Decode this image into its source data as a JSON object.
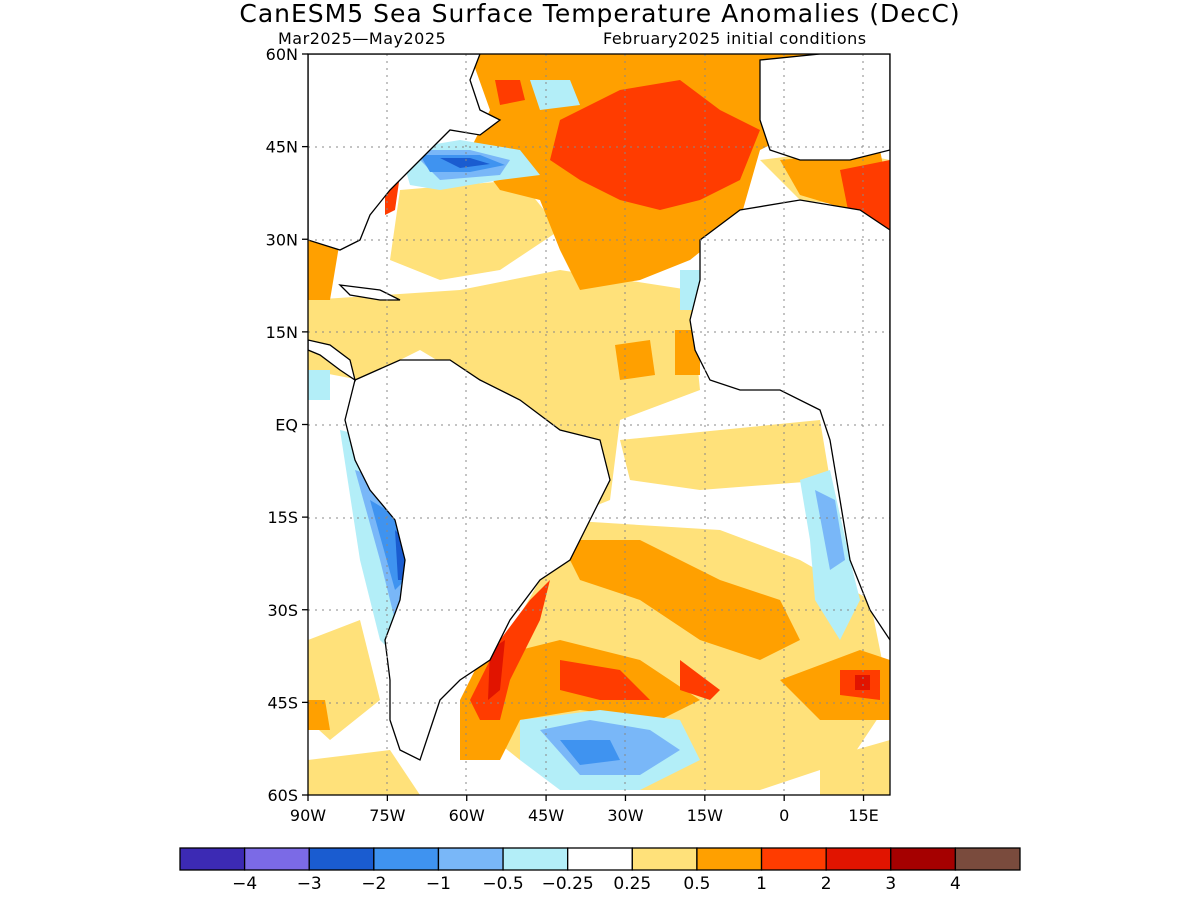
{
  "map": {
    "title": "CanESM5 Sea Surface Temperature Anomalies (DecC)",
    "period": "Mar2025—May2025",
    "init": "February2025 initial conditions",
    "lat_ticks": [
      {
        "value": 60,
        "label": "60N"
      },
      {
        "value": 45,
        "label": "45N"
      },
      {
        "value": 30,
        "label": "30N"
      },
      {
        "value": 15,
        "label": "15N"
      },
      {
        "value": 0,
        "label": "EQ"
      },
      {
        "value": -15,
        "label": "15S"
      },
      {
        "value": -30,
        "label": "30S"
      },
      {
        "value": -45,
        "label": "45S"
      },
      {
        "value": -60,
        "label": "60S"
      }
    ],
    "lon_ticks": [
      {
        "value": -90,
        "label": "90W"
      },
      {
        "value": -75,
        "label": "75W"
      },
      {
        "value": -60,
        "label": "60W"
      },
      {
        "value": -45,
        "label": "45W"
      },
      {
        "value": -30,
        "label": "30W"
      },
      {
        "value": -15,
        "label": "15W"
      },
      {
        "value": 0,
        "label": "0"
      },
      {
        "value": 15,
        "label": "15E"
      }
    ],
    "lon_range": [
      -90,
      20
    ],
    "lat_range": [
      -60,
      60
    ],
    "grid": "dotted"
  },
  "colorbar": {
    "colors": [
      "#3c2ab4",
      "#7b6ae6",
      "#1a5cd0",
      "#3f93f0",
      "#79b7f8",
      "#b3eef8",
      "#ffffff",
      "#ffe17a",
      "#ffa000",
      "#ff3c00",
      "#e11400",
      "#a50000",
      "#7a4b3d"
    ],
    "labels": [
      "−4",
      "−3",
      "−2",
      "−1",
      "−0.5",
      "−0.25",
      "0.25",
      "0.5",
      "1",
      "2",
      "3",
      "4"
    ]
  }
}
